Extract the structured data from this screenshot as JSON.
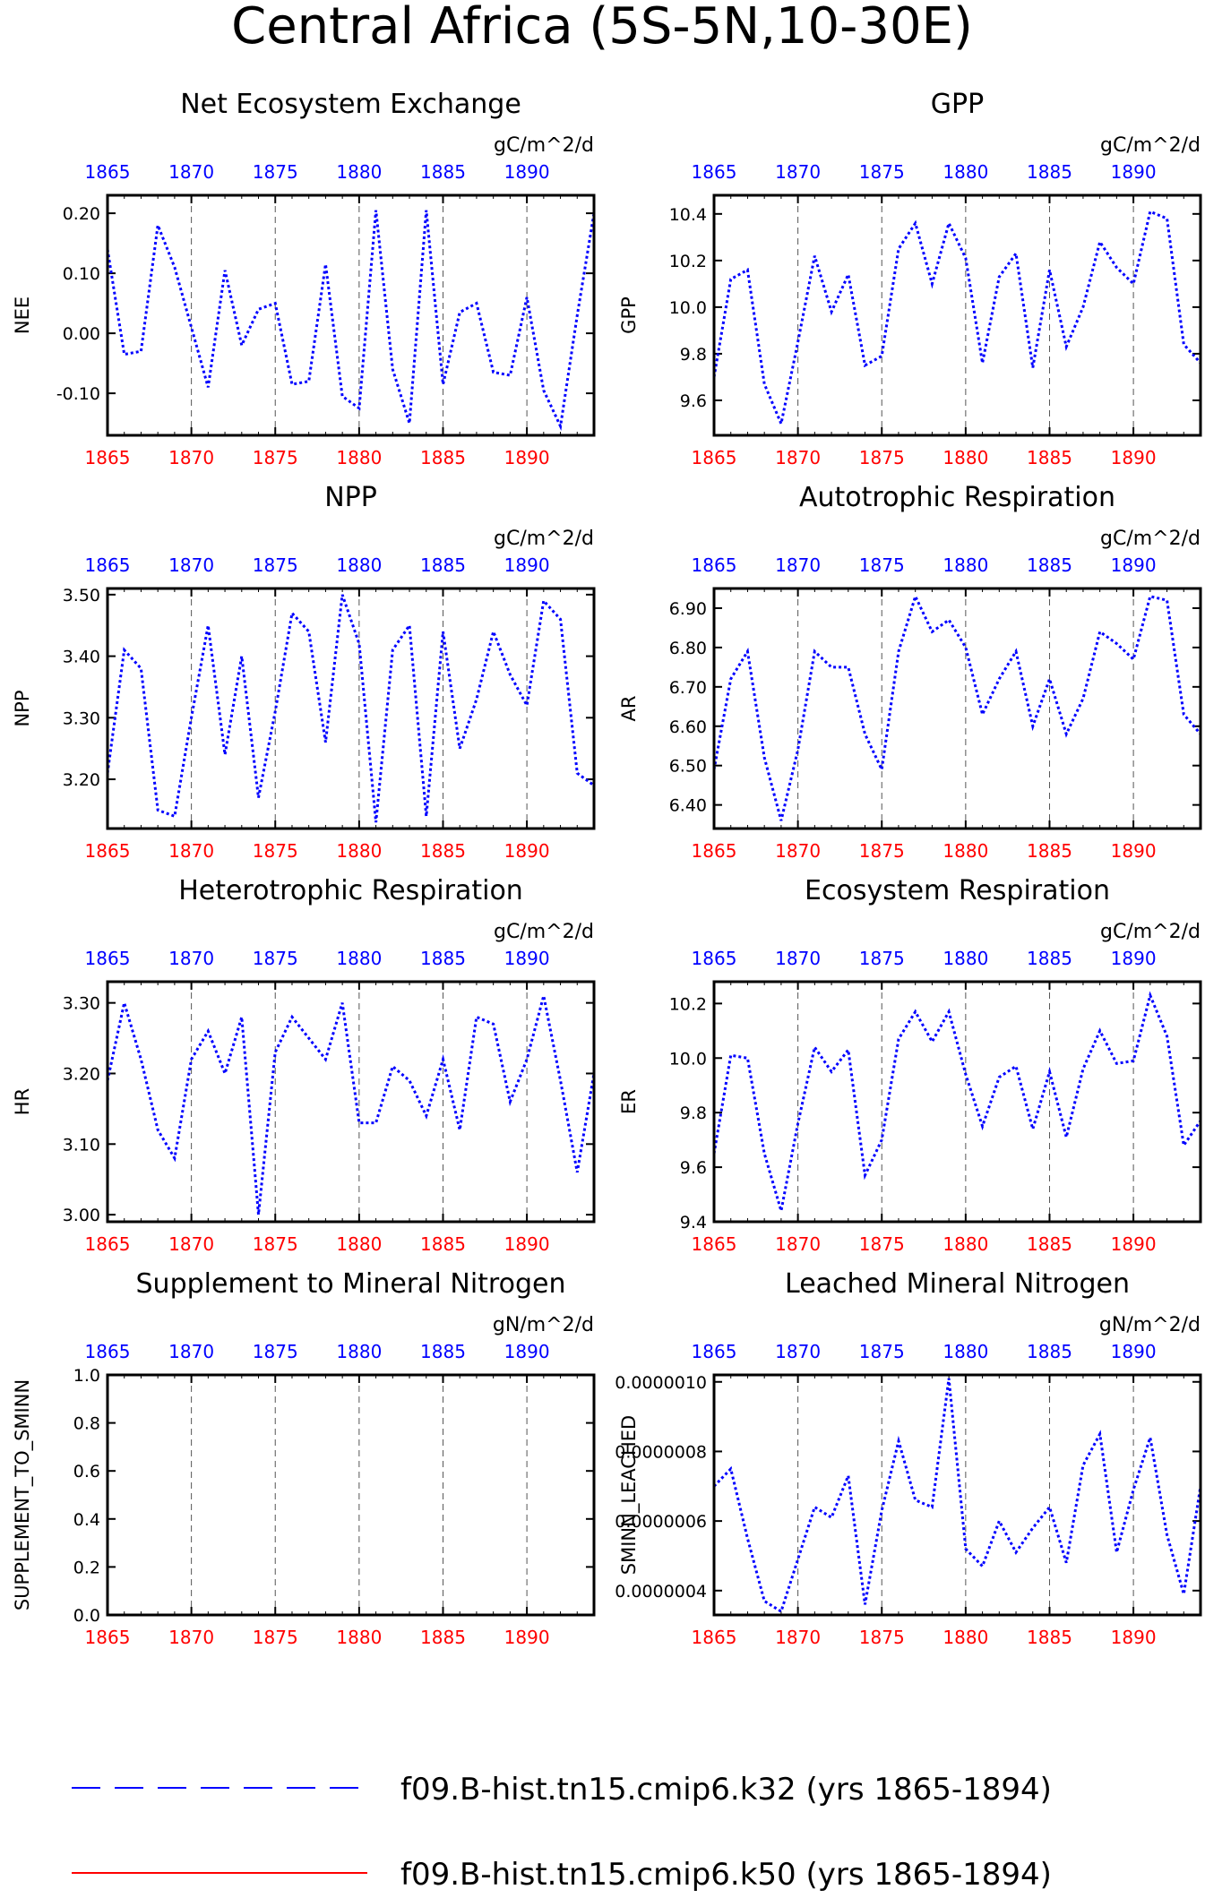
{
  "title": "Central Africa (5S-5N,10-30E)",
  "x_ticks": [
    "1865",
    "1870",
    "1875",
    "1880",
    "1885",
    "1890"
  ],
  "colors": {
    "bottom_ticks": "#ff0000",
    "top_ticks": "#0000ff",
    "series_k32": "#0000ff",
    "series_k50": "#ff0000",
    "frame": "#000000"
  },
  "legend": [
    {
      "label": "f09.B-hist.tn15.cmip6.k32 (yrs 1865-1894)",
      "color": "#0000ff",
      "style": "dashed"
    },
    {
      "label": "f09.B-hist.tn15.cmip6.k50 (yrs 1865-1894)",
      "color": "#ff0000",
      "style": "solid"
    }
  ],
  "chart_data": [
    {
      "type": "line",
      "title": "Net Ecosystem Exchange",
      "ylabel": "NEE",
      "units": "gC/m^2/d",
      "xlim": [
        1865,
        1894
      ],
      "ylim": [
        -0.17,
        0.23
      ],
      "yticks": [
        -0.1,
        0.0,
        0.1,
        0.2
      ],
      "ytick_labels": [
        "-0.10",
        "0.00",
        "0.10",
        "0.20"
      ],
      "x": [
        1865,
        1866,
        1867,
        1868,
        1869,
        1870,
        1871,
        1872,
        1873,
        1874,
        1875,
        1876,
        1877,
        1878,
        1879,
        1880,
        1881,
        1882,
        1883,
        1884,
        1885,
        1886,
        1887,
        1888,
        1889,
        1890,
        1891,
        1892,
        1893,
        1894
      ],
      "series": [
        {
          "name": "f09.B-hist.tn15.cmip6.k32",
          "values": [
            0.14,
            -0.035,
            -0.03,
            0.18,
            0.11,
            0.01,
            -0.09,
            0.105,
            -0.02,
            0.04,
            0.05,
            -0.085,
            -0.08,
            0.115,
            -0.105,
            -0.125,
            0.205,
            -0.06,
            -0.15,
            0.205,
            -0.085,
            0.035,
            0.05,
            -0.065,
            -0.07,
            0.06,
            -0.095,
            -0.155,
            0.03,
            0.2
          ]
        }
      ]
    },
    {
      "type": "line",
      "title": "GPP",
      "ylabel": "GPP",
      "units": "gC/m^2/d",
      "xlim": [
        1865,
        1894
      ],
      "ylim": [
        9.45,
        10.48
      ],
      "yticks": [
        9.6,
        9.8,
        10.0,
        10.2,
        10.4
      ],
      "ytick_labels": [
        "9.6",
        "9.8",
        "10.0",
        "10.2",
        "10.4"
      ],
      "x": [
        1865,
        1866,
        1867,
        1868,
        1869,
        1870,
        1871,
        1872,
        1873,
        1874,
        1875,
        1876,
        1877,
        1878,
        1879,
        1880,
        1881,
        1882,
        1883,
        1884,
        1885,
        1886,
        1887,
        1888,
        1889,
        1890,
        1891,
        1892,
        1893,
        1894
      ],
      "series": [
        {
          "name": "f09.B-hist.tn15.cmip6.k32",
          "values": [
            9.7,
            10.12,
            10.16,
            9.67,
            9.5,
            9.85,
            10.22,
            9.98,
            10.14,
            9.75,
            9.79,
            10.25,
            10.36,
            10.1,
            10.36,
            10.21,
            9.76,
            10.13,
            10.23,
            9.74,
            10.16,
            9.83,
            10.0,
            10.28,
            10.17,
            10.1,
            10.41,
            10.38,
            9.84,
            9.76
          ]
        }
      ]
    },
    {
      "type": "line",
      "title": "NPP",
      "ylabel": "NPP",
      "units": "gC/m^2/d",
      "xlim": [
        1865,
        1894
      ],
      "ylim": [
        3.12,
        3.51
      ],
      "yticks": [
        3.2,
        3.3,
        3.4,
        3.5
      ],
      "ytick_labels": [
        "3.20",
        "3.30",
        "3.40",
        "3.50"
      ],
      "x": [
        1865,
        1866,
        1867,
        1868,
        1869,
        1870,
        1871,
        1872,
        1873,
        1874,
        1875,
        1876,
        1877,
        1878,
        1879,
        1880,
        1881,
        1882,
        1883,
        1884,
        1885,
        1886,
        1887,
        1888,
        1889,
        1890,
        1891,
        1892,
        1893,
        1894
      ],
      "series": [
        {
          "name": "f09.B-hist.tn15.cmip6.k32",
          "values": [
            3.21,
            3.41,
            3.38,
            3.15,
            3.14,
            3.3,
            3.45,
            3.24,
            3.4,
            3.17,
            3.31,
            3.47,
            3.44,
            3.26,
            3.5,
            3.42,
            3.13,
            3.41,
            3.45,
            3.14,
            3.44,
            3.25,
            3.33,
            3.44,
            3.37,
            3.32,
            3.49,
            3.46,
            3.21,
            3.19
          ]
        }
      ]
    },
    {
      "type": "line",
      "title": "Autotrophic Respiration",
      "ylabel": "AR",
      "units": "gC/m^2/d",
      "xlim": [
        1865,
        1894
      ],
      "ylim": [
        6.34,
        6.95
      ],
      "yticks": [
        6.4,
        6.5,
        6.6,
        6.7,
        6.8,
        6.9
      ],
      "ytick_labels": [
        "6.40",
        "6.50",
        "6.60",
        "6.70",
        "6.80",
        "6.90"
      ],
      "x": [
        1865,
        1866,
        1867,
        1868,
        1869,
        1870,
        1871,
        1872,
        1873,
        1874,
        1875,
        1876,
        1877,
        1878,
        1879,
        1880,
        1881,
        1882,
        1883,
        1884,
        1885,
        1886,
        1887,
        1888,
        1889,
        1890,
        1891,
        1892,
        1893,
        1894
      ],
      "series": [
        {
          "name": "f09.B-hist.tn15.cmip6.k32",
          "values": [
            6.49,
            6.72,
            6.79,
            6.52,
            6.36,
            6.54,
            6.79,
            6.75,
            6.75,
            6.58,
            6.49,
            6.79,
            6.93,
            6.84,
            6.87,
            6.8,
            6.63,
            6.72,
            6.79,
            6.6,
            6.72,
            6.58,
            6.67,
            6.84,
            6.81,
            6.77,
            6.93,
            6.92,
            6.63,
            6.58
          ]
        }
      ]
    },
    {
      "type": "line",
      "title": "Heterotrophic Respiration",
      "ylabel": "HR",
      "units": "gC/m^2/d",
      "xlim": [
        1865,
        1894
      ],
      "ylim": [
        2.99,
        3.33
      ],
      "yticks": [
        3.0,
        3.1,
        3.2,
        3.3
      ],
      "ytick_labels": [
        "3.00",
        "3.10",
        "3.20",
        "3.30"
      ],
      "x": [
        1865,
        1866,
        1867,
        1868,
        1869,
        1870,
        1871,
        1872,
        1873,
        1874,
        1875,
        1876,
        1877,
        1878,
        1879,
        1880,
        1881,
        1882,
        1883,
        1884,
        1885,
        1886,
        1887,
        1888,
        1889,
        1890,
        1891,
        1892,
        1893,
        1894
      ],
      "series": [
        {
          "name": "f09.B-hist.tn15.cmip6.k32",
          "values": [
            3.19,
            3.3,
            3.22,
            3.12,
            3.08,
            3.22,
            3.26,
            3.2,
            3.28,
            3.0,
            3.23,
            3.28,
            3.25,
            3.22,
            3.3,
            3.13,
            3.13,
            3.21,
            3.19,
            3.14,
            3.22,
            3.12,
            3.28,
            3.27,
            3.16,
            3.22,
            3.31,
            3.19,
            3.06,
            3.2
          ]
        }
      ]
    },
    {
      "type": "line",
      "title": "Ecosystem Respiration",
      "ylabel": "ER",
      "units": "gC/m^2/d",
      "xlim": [
        1865,
        1894
      ],
      "ylim": [
        9.4,
        10.28
      ],
      "yticks": [
        9.4,
        9.6,
        9.8,
        10.0,
        10.2
      ],
      "ytick_labels": [
        "9.4",
        "9.6",
        "9.8",
        "10.0",
        "10.2"
      ],
      "x": [
        1865,
        1866,
        1867,
        1868,
        1869,
        1870,
        1871,
        1872,
        1873,
        1874,
        1875,
        1876,
        1877,
        1878,
        1879,
        1880,
        1881,
        1882,
        1883,
        1884,
        1885,
        1886,
        1887,
        1888,
        1889,
        1890,
        1891,
        1892,
        1893,
        1894
      ],
      "series": [
        {
          "name": "f09.B-hist.tn15.cmip6.k32",
          "values": [
            9.65,
            10.01,
            10.0,
            9.65,
            9.44,
            9.76,
            10.04,
            9.95,
            10.03,
            9.57,
            9.7,
            10.07,
            10.17,
            10.06,
            10.17,
            9.94,
            9.75,
            9.93,
            9.97,
            9.74,
            9.95,
            9.71,
            9.96,
            10.1,
            9.98,
            9.99,
            10.23,
            10.08,
            9.68,
            9.77
          ]
        }
      ]
    },
    {
      "type": "line",
      "title": "Supplement to Mineral Nitrogen",
      "ylabel": "SUPPLEMENT_TO_SMINN",
      "units": "gN/m^2/d",
      "xlim": [
        1865,
        1894
      ],
      "ylim": [
        0.0,
        1.0
      ],
      "yticks": [
        0.0,
        0.2,
        0.4,
        0.6,
        0.8,
        1.0
      ],
      "ytick_labels": [
        "0.0",
        "0.2",
        "0.4",
        "0.6",
        "0.8",
        "1.0"
      ],
      "x": [],
      "series": []
    },
    {
      "type": "line",
      "title": "Leached Mineral Nitrogen",
      "ylabel": "SMINN_LEACHED",
      "units": "gN/m^2/d",
      "xlim": [
        1865,
        1894
      ],
      "ylim": [
        3.3e-07,
        1.02e-06
      ],
      "yticks": [
        4e-07,
        6e-07,
        8e-07,
        1e-06
      ],
      "ytick_labels": [
        "0.0000004",
        "0.0000006",
        "0.0000008",
        "0.0000010"
      ],
      "x": [
        1865,
        1866,
        1867,
        1868,
        1869,
        1870,
        1871,
        1872,
        1873,
        1874,
        1875,
        1876,
        1877,
        1878,
        1879,
        1880,
        1881,
        1882,
        1883,
        1884,
        1885,
        1886,
        1887,
        1888,
        1889,
        1890,
        1891,
        1892,
        1893,
        1894
      ],
      "series": [
        {
          "name": "f09.B-hist.tn15.cmip6.k32",
          "values": [
            7e-07,
            7.5e-07,
            5.5e-07,
            3.7e-07,
            3.4e-07,
            4.9e-07,
            6.4e-07,
            6.1e-07,
            7.3e-07,
            3.6e-07,
            6.3e-07,
            8.3e-07,
            6.6e-07,
            6.4e-07,
            1.01e-06,
            5.2e-07,
            4.7e-07,
            6e-07,
            5.1e-07,
            5.8e-07,
            6.4e-07,
            4.8e-07,
            7.6e-07,
            8.5e-07,
            5.1e-07,
            6.9e-07,
            8.4e-07,
            5.6e-07,
            3.9e-07,
            7e-07
          ]
        }
      ]
    }
  ]
}
